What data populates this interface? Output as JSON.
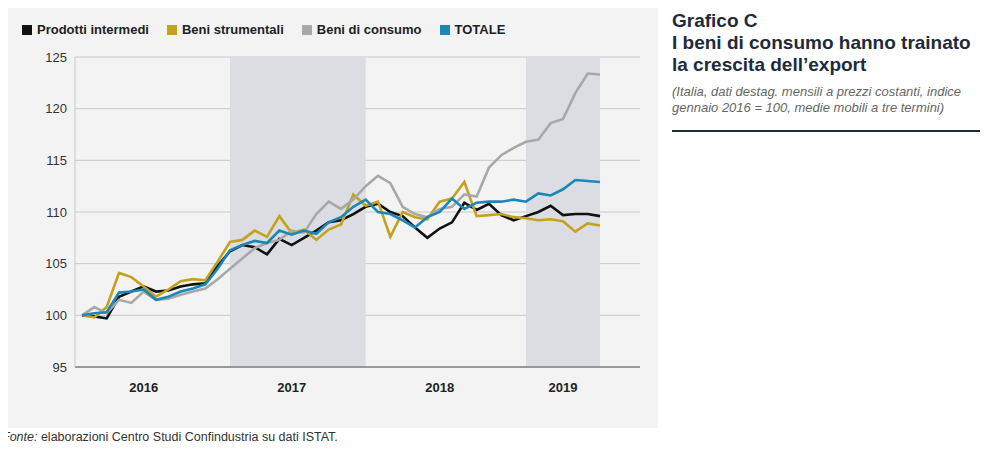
{
  "chart_data": {
    "type": "line",
    "title": "Grafico C",
    "subtitle": "I beni di consumo hanno trainato la crescita dell’export",
    "annotations": [
      "(Italia, dati destag. mensili a prezzi costanti, indice gennaio 2016 = 100, medie mobili a tre termini)"
    ],
    "source": {
      "label": "Fonte:",
      "text": "elaborazioni Centro Studi Confindustria su dati ISTAT."
    },
    "categories": [
      null,
      null,
      null,
      null,
      null,
      "2016",
      null,
      null,
      null,
      null,
      null,
      null,
      null,
      null,
      null,
      null,
      null,
      "2017",
      null,
      null,
      null,
      null,
      null,
      null,
      null,
      null,
      null,
      null,
      null,
      "2018",
      null,
      null,
      null,
      null,
      null,
      null,
      null,
      null,
      null,
      "2019",
      null,
      null,
      null
    ],
    "series": [
      {
        "name": "Prodotti intermedi",
        "color": "#111111",
        "values": [
          100,
          99.9,
          99.7,
          101.8,
          102.3,
          102.8,
          102.3,
          102.4,
          102.8,
          103,
          103.1,
          104.8,
          106.2,
          106.8,
          106.6,
          105.9,
          107.4,
          106.8,
          107.5,
          108.2,
          109,
          109.2,
          109.8,
          110.5,
          110.8,
          110,
          109.6,
          108.5,
          107.5,
          108.4,
          109,
          110.9,
          110.2,
          110.8,
          109.7,
          109.2,
          109.6,
          110,
          110.6,
          109.7,
          109.8,
          109.8,
          109.6
        ]
      },
      {
        "name": "Beni strumentali",
        "color": "#c4a21e",
        "values": [
          100,
          99.8,
          100.8,
          104.1,
          103.7,
          102.8,
          101.8,
          102.5,
          103.3,
          103.5,
          103.4,
          105.2,
          107.1,
          107.3,
          108.2,
          107.6,
          109.6,
          108,
          108.3,
          107.3,
          108.3,
          108.8,
          111.7,
          110.6,
          111,
          107.6,
          110,
          109.5,
          109.3,
          111,
          111.3,
          112.9,
          109.6,
          109.7,
          109.8,
          109.5,
          109.4,
          109.2,
          109.3,
          109.1,
          108.1,
          108.9,
          108.7
        ]
      },
      {
        "name": "Beni di consumo",
        "color": "#a8a8a8",
        "values": [
          100,
          100.8,
          100.2,
          101.5,
          101.2,
          102.3,
          101.5,
          101.6,
          102,
          102.3,
          102.6,
          103.5,
          104.5,
          105.5,
          106.5,
          107,
          107.3,
          108.2,
          108,
          109.8,
          111,
          110.3,
          111.2,
          112.5,
          113.5,
          112.8,
          110.5,
          109.8,
          109.5,
          110.3,
          110.5,
          111.7,
          111.5,
          114.3,
          115.5,
          116.2,
          116.8,
          117,
          118.6,
          119,
          121.5,
          123.4,
          123.3
        ]
      },
      {
        "name": "TOTALE",
        "color": "#1b87b6",
        "values": [
          100,
          100.2,
          100.3,
          102.2,
          102.3,
          102.5,
          101.5,
          101.8,
          102.3,
          102.6,
          103,
          104.5,
          106.3,
          106.8,
          107.2,
          107,
          108.2,
          107.8,
          108.2,
          107.9,
          109,
          109.5,
          110.5,
          111.2,
          110,
          109.8,
          109.2,
          108.5,
          109.5,
          110,
          111.3,
          110.3,
          110.9,
          111,
          111,
          111.2,
          111,
          111.8,
          111.6,
          112.2,
          113.1,
          113,
          112.9
        ]
      }
    ],
    "ylim": [
      95,
      125
    ],
    "yticks": [
      95,
      100,
      105,
      110,
      115,
      120,
      125
    ],
    "grid": true,
    "legend": "top-left"
  }
}
